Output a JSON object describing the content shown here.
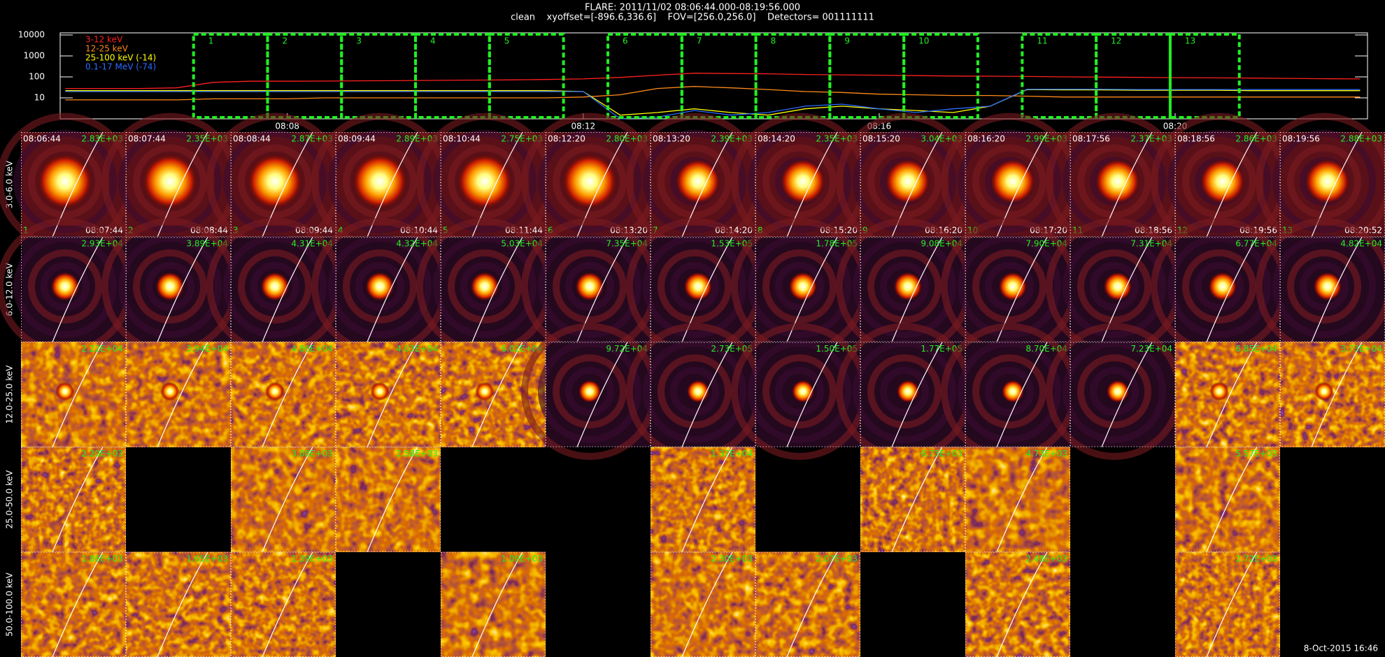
{
  "header": {
    "title": "FLARE: 2011/11/02 08:06:44.000-08:19:56.000",
    "subtitle": "clean    xyoffset=[-896.6,336.6]    FOV=[256.0,256.0]    Detectors= 001111111"
  },
  "chart_data": {
    "type": "line",
    "log_y": true,
    "legend": "upper-left",
    "xlim": [
      4.93,
      22.6
    ],
    "xticks": [
      {
        "value": 8,
        "label": "08:08"
      },
      {
        "value": 12,
        "label": "08:12"
      },
      {
        "value": 16,
        "label": "08:16"
      },
      {
        "value": 20,
        "label": "08:20"
      }
    ],
    "ylim": [
      1,
      10000
    ],
    "yticks": [
      10,
      100,
      1000,
      10000
    ],
    "x": [
      5,
      5.5,
      6,
      6.5,
      7,
      7.5,
      8,
      8.5,
      9,
      9.5,
      10,
      10.5,
      11,
      11.5,
      12,
      12.5,
      13,
      13.5,
      14,
      14.5,
      15,
      15.5,
      16,
      16.5,
      17,
      17.5,
      18,
      18.5,
      19,
      19.5,
      20,
      20.5,
      21,
      21.5,
      22,
      22.5
    ],
    "series": [
      {
        "name": "3-12 keV",
        "color": "#ff2020",
        "values": [
          28,
          28,
          28,
          30,
          55,
          62,
          62,
          63,
          65,
          66,
          68,
          70,
          72,
          75,
          80,
          95,
          120,
          150,
          145,
          140,
          130,
          125,
          120,
          115,
          110,
          108,
          105,
          100,
          98,
          95,
          92,
          90,
          88,
          85,
          82,
          80
        ]
      },
      {
        "name": "12-25 keV",
        "color": "#ff8a1a",
        "values": [
          8,
          8,
          8,
          8,
          9,
          9,
          9,
          10,
          10,
          10,
          10,
          10,
          10,
          10,
          11,
          14,
          28,
          35,
          30,
          25,
          20,
          18,
          15,
          14,
          13,
          13,
          12,
          11,
          11,
          11,
          11,
          11,
          11,
          11,
          11,
          11
        ]
      },
      {
        "name": "25-100 keV (-14)",
        "color": "#ffff00",
        "values": [
          22,
          22,
          22,
          22,
          22,
          22,
          22,
          22,
          22,
          22,
          22,
          22,
          22,
          22,
          20,
          1.5,
          2,
          3,
          2,
          1.5,
          3,
          4,
          3,
          2.5,
          2,
          4,
          25,
          24,
          24,
          23,
          23,
          23,
          22,
          22,
          22,
          22
        ]
      },
      {
        "name": "0.1-17 MeV (-74)",
        "color": "#2a6cff",
        "values": [
          20,
          20,
          20,
          20,
          20,
          20,
          20,
          20,
          20,
          20,
          20,
          20,
          20,
          20,
          20,
          1,
          1.2,
          2.5,
          1.5,
          2,
          4,
          5,
          3,
          2,
          3,
          4,
          26,
          26,
          26,
          25,
          25,
          25,
          25,
          25,
          25,
          25
        ]
      }
    ],
    "intervals": [
      {
        "label": "1",
        "start": 6.733,
        "end": 7.733
      },
      {
        "label": "2",
        "start": 7.733,
        "end": 8.733
      },
      {
        "label": "3",
        "start": 8.733,
        "end": 9.733
      },
      {
        "label": "4",
        "start": 9.733,
        "end": 10.733
      },
      {
        "label": "5",
        "start": 10.733,
        "end": 11.733
      },
      {
        "label": "6",
        "start": 12.333,
        "end": 13.333
      },
      {
        "label": "7",
        "start": 13.333,
        "end": 14.333
      },
      {
        "label": "8",
        "start": 14.333,
        "end": 15.333
      },
      {
        "label": "9",
        "start": 15.333,
        "end": 16.333
      },
      {
        "label": "10",
        "start": 16.333,
        "end": 17.333
      },
      {
        "label": "11",
        "start": 17.933,
        "end": 18.933
      },
      {
        "label": "12",
        "start": 18.933,
        "end": 19.933
      },
      {
        "label": "13",
        "start": 19.933,
        "end": 20.867
      }
    ]
  },
  "panels": {
    "columns": [
      {
        "start": "08:06:44",
        "end": "08:07:44"
      },
      {
        "start": "08:07:44",
        "end": "08:08:44"
      },
      {
        "start": "08:08:44",
        "end": "08:09:44"
      },
      {
        "start": "08:09:44",
        "end": "08:10:44"
      },
      {
        "start": "08:10:44",
        "end": "08:11:44"
      },
      {
        "start": "08:12:20",
        "end": "08:13:20"
      },
      {
        "start": "08:13:20",
        "end": "08:14:20"
      },
      {
        "start": "08:14:20",
        "end": "08:15:20"
      },
      {
        "start": "08:15:20",
        "end": "08:16:20"
      },
      {
        "start": "08:16:20",
        "end": "08:17:20"
      },
      {
        "start": "08:17:56",
        "end": "08:18:56"
      },
      {
        "start": "08:18:56",
        "end": "08:19:56"
      },
      {
        "start": "08:19:56",
        "end": "08:20:52"
      }
    ],
    "rows": [
      {
        "label": "3.0-6.0 keV",
        "cells": [
          "2.83E+03",
          "2.35E+03",
          "2.87E+03",
          "2.89E+03",
          "2.75E+03",
          "2.80E+03",
          "2.39E+03",
          "2.35E+03",
          "3.04E+03",
          "2.99E+03",
          "2.37E+03",
          "2.86E+03",
          "2.88E+03"
        ]
      },
      {
        "label": "6.0-12.0 keV",
        "cells": [
          "2.93E+04",
          "3.89E+04",
          "4.31E+04",
          "4.32E+04",
          "5.03E+04",
          "7.35E+04",
          "1.53E+05",
          "1.78E+05",
          "9.08E+04",
          "7.90E+04",
          "7.31E+04",
          "6.77E+04",
          "4.82E+04"
        ]
      },
      {
        "label": "12.0-25.0 keV",
        "cells": [
          "2.22E+04",
          "3.94E+04",
          "4.86E+04",
          "4.03E+04",
          "6.02E+04",
          "9.72E+04",
          "2.73E+05",
          "1.50E+05",
          "1.77E+05",
          "8.70E+04",
          "7.23E+04",
          "6.85E+04",
          "3.73E+04"
        ]
      },
      {
        "label": "25.0-50.0 keV",
        "cells": [
          "2.20E+03",
          null,
          "3.08E+03",
          "2.58E+03",
          null,
          null,
          "1.37E+04",
          null,
          "6.73E+03",
          "4.73E+03",
          null,
          "5.57E+03",
          null
        ]
      },
      {
        "label": "50.0-100.0 keV",
        "cells": [
          "1.86E+03",
          "1.65E+03",
          "1.39E+03",
          null,
          "1.09E+03",
          null,
          "2.30E+03",
          "2.07E+03",
          null,
          "2.48E+03",
          null,
          "2.72E+03",
          null
        ]
      }
    ]
  },
  "footer": "8-Oct-2015 16:46"
}
